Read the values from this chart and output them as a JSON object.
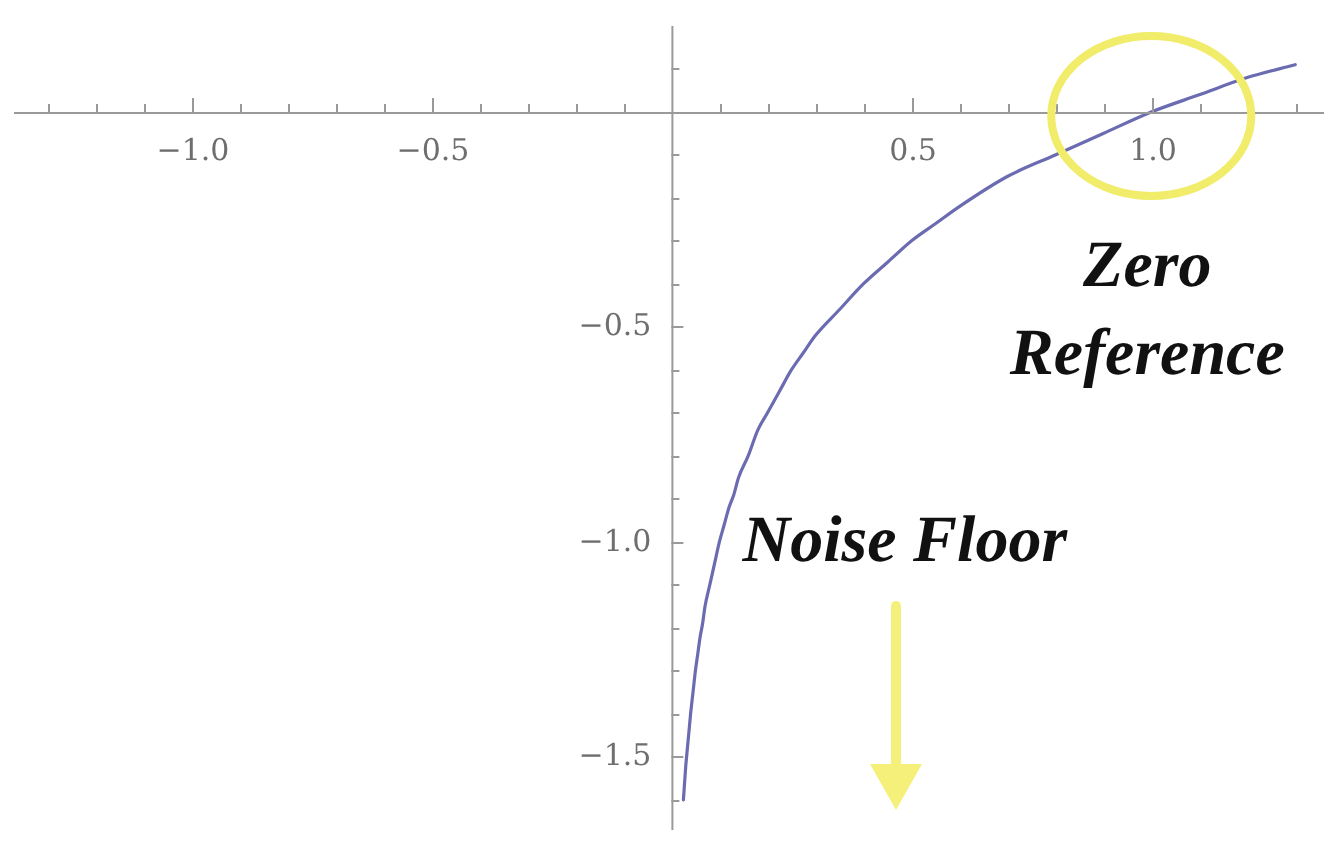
{
  "chart_data": {
    "type": "line",
    "x": [
      0.025,
      0.0275,
      0.03,
      0.0325,
      0.035,
      0.0375,
      0.04,
      0.045,
      0.05,
      0.055,
      0.06,
      0.065,
      0.07,
      0.08,
      0.09,
      0.1,
      0.11,
      0.12,
      0.13,
      0.14,
      0.16,
      0.18,
      0.2,
      0.225,
      0.25,
      0.275,
      0.3,
      0.35,
      0.4,
      0.45,
      0.5,
      0.55,
      0.6,
      0.7,
      0.8,
      0.9,
      1.0,
      1.1,
      1.2,
      1.3
    ],
    "values": [
      -1.6,
      -1.56,
      -1.52,
      -1.49,
      -1.46,
      -1.43,
      -1.4,
      -1.35,
      -1.3,
      -1.26,
      -1.22,
      -1.19,
      -1.15,
      -1.1,
      -1.05,
      -1.0,
      -0.96,
      -0.92,
      -0.89,
      -0.85,
      -0.8,
      -0.74,
      -0.7,
      -0.65,
      -0.6,
      -0.56,
      -0.52,
      -0.46,
      -0.4,
      -0.35,
      -0.3,
      -0.26,
      -0.22,
      -0.15,
      -0.1,
      -0.05,
      0,
      0.04,
      0.08,
      0.11
    ],
    "color": "#6b6bb2",
    "marker": "none",
    "line_style": "solid",
    "xlim": [
      -1.37,
      1.36
    ],
    "ylim": [
      -1.67,
      0.2
    ],
    "xticks": [
      {
        "value": -1.3,
        "label": null
      },
      {
        "value": -1.2,
        "label": null
      },
      {
        "value": -1.1,
        "label": null
      },
      {
        "value": -1.0,
        "label": "−1.0"
      },
      {
        "value": -0.9,
        "label": null
      },
      {
        "value": -0.8,
        "label": null
      },
      {
        "value": -0.7,
        "label": null
      },
      {
        "value": -0.6,
        "label": null
      },
      {
        "value": -0.5,
        "label": "−0.5"
      },
      {
        "value": -0.4,
        "label": null
      },
      {
        "value": -0.3,
        "label": null
      },
      {
        "value": -0.2,
        "label": null
      },
      {
        "value": -0.1,
        "label": null
      },
      {
        "value": 0.1,
        "label": null
      },
      {
        "value": 0.2,
        "label": null
      },
      {
        "value": 0.3,
        "label": null
      },
      {
        "value": 0.4,
        "label": null
      },
      {
        "value": 0.5,
        "label": "0.5"
      },
      {
        "value": 0.6,
        "label": null
      },
      {
        "value": 0.7,
        "label": null
      },
      {
        "value": 0.8,
        "label": null
      },
      {
        "value": 0.9,
        "label": null
      },
      {
        "value": 1.0,
        "label": "1.0"
      },
      {
        "value": 1.1,
        "label": null
      },
      {
        "value": 1.2,
        "label": null
      },
      {
        "value": 1.3,
        "label": null
      }
    ],
    "yticks": [
      {
        "value": -1.6,
        "label": null
      },
      {
        "value": -1.5,
        "label": "−1.5"
      },
      {
        "value": -1.4,
        "label": null
      },
      {
        "value": -1.3,
        "label": null
      },
      {
        "value": -1.2,
        "label": null
      },
      {
        "value": -1.1,
        "label": null
      },
      {
        "value": -1.0,
        "label": "−1.0"
      },
      {
        "value": -0.9,
        "label": null
      },
      {
        "value": -0.8,
        "label": null
      },
      {
        "value": -0.7,
        "label": null
      },
      {
        "value": -0.6,
        "label": null
      },
      {
        "value": -0.5,
        "label": "−0.5"
      },
      {
        "value": -0.4,
        "label": null
      },
      {
        "value": -0.3,
        "label": null
      },
      {
        "value": -0.2,
        "label": null
      },
      {
        "value": -0.1,
        "label": null
      },
      {
        "value": 0.1,
        "label": null
      }
    ],
    "annotations": [
      {
        "text": "Zero Reference",
        "x": 1,
        "y": 0
      },
      "Noise Floor"
    ]
  }
}
